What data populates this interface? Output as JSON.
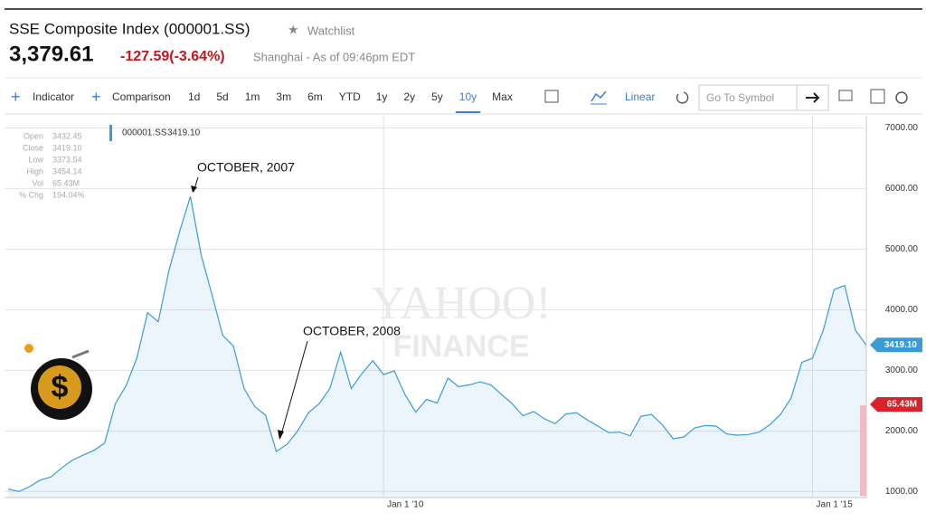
{
  "header": {
    "title": "SSE Composite Index (000001.SS)",
    "watchlist": "Watchlist",
    "price": "3,379.61",
    "change": "-127.59(-3.64%)",
    "status": "Shanghai - As of 09:46pm EDT"
  },
  "toolbar": {
    "indicator": "Indicator",
    "comparison": "Comparison",
    "ranges": [
      "1d",
      "5d",
      "1m",
      "3m",
      "6m",
      "YTD",
      "1y",
      "2y",
      "5y",
      "10y",
      "Max"
    ],
    "active_range": "10y",
    "scale": "Linear",
    "search_placeholder": "Go To Symbol"
  },
  "info": {
    "rows": [
      [
        "Open",
        "3432.45"
      ],
      [
        "Close",
        "3419.10"
      ],
      [
        "Low",
        "3373.54"
      ],
      [
        "High",
        "3454.14"
      ],
      [
        "Vol",
        "65.43M"
      ],
      [
        "% Chg",
        "194.04%"
      ]
    ]
  },
  "watermark": [
    "YAHOO!",
    "FINANCE"
  ],
  "chart_data": {
    "type": "line",
    "categories": [
      null,
      null,
      null,
      null,
      null,
      null,
      null,
      null,
      null,
      null,
      null,
      null,
      null,
      null,
      null,
      null,
      null,
      null,
      null,
      null,
      null,
      null,
      null,
      null,
      null,
      null,
      null,
      null,
      null,
      null,
      null,
      null,
      null,
      null,
      null,
      "Jan 1 '10",
      null,
      null,
      null,
      null,
      null,
      null,
      null,
      null,
      null,
      null,
      null,
      null,
      null,
      null,
      null,
      null,
      null,
      null,
      null,
      null,
      null,
      null,
      null,
      null,
      null,
      null,
      null,
      null,
      null,
      null,
      null,
      null,
      null,
      null,
      null,
      null,
      null,
      null,
      null,
      "Jan 1 '15",
      null,
      null,
      null,
      null,
      null
    ],
    "series": [
      {
        "name": "000001.SS",
        "color": "#3a9bd9",
        "values": [
          1040,
          1000,
          1080,
          1190,
          1240,
          1390,
          1520,
          1600,
          1680,
          1800,
          2450,
          2750,
          3200,
          3950,
          3800,
          4650,
          5300,
          5870,
          4900,
          4250,
          3580,
          3400,
          2700,
          2400,
          2260,
          1660,
          1780,
          2000,
          2300,
          2450,
          2700,
          3300,
          2700,
          2950,
          3160,
          2930,
          2990,
          2600,
          2310,
          2520,
          2460,
          2870,
          2730,
          2760,
          2810,
          2760,
          2600,
          2450,
          2250,
          2320,
          2200,
          2120,
          2280,
          2300,
          2180,
          2080,
          1970,
          1980,
          1920,
          2240,
          2270,
          2100,
          1870,
          1900,
          2050,
          2090,
          2080,
          1950,
          1930,
          1940,
          1980,
          2100,
          2270,
          2540,
          3130,
          3200,
          3660,
          4330,
          4400,
          3660,
          3419.1
        ]
      }
    ],
    "last_label": "3419.10",
    "volume_label": "65.43M",
    "annotations": [
      "OCTOBER, 2007",
      "OCTOBER, 2008"
    ],
    "ylim": [
      900,
      7200
    ],
    "yticks": [
      {
        "value": 1000,
        "label": "1000.00"
      },
      {
        "value": 2000,
        "label": "2000.00"
      },
      {
        "value": 3000,
        "label": "3000.00"
      },
      {
        "value": 4000,
        "label": "4000.00"
      },
      {
        "value": 5000,
        "label": "5000.00"
      },
      {
        "value": 6000,
        "label": "6000.00"
      },
      {
        "value": 7000,
        "label": "7000.00"
      }
    ],
    "grid": true
  }
}
